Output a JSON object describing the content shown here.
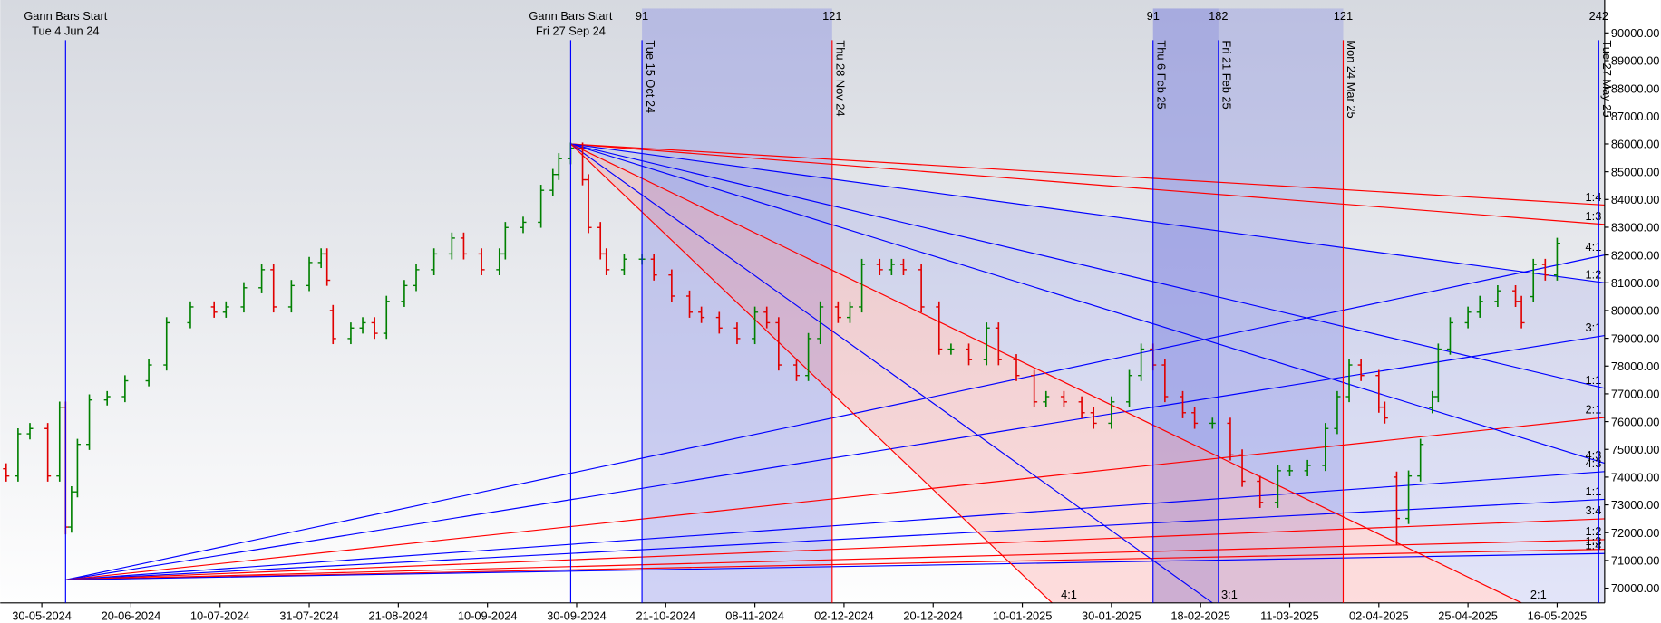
{
  "chart_data": {
    "type": "ohlc",
    "xlim": [
      -7,
      263
    ],
    "ylim": [
      69470,
      90880
    ],
    "up_color": "#008000",
    "down_color": "#e00000",
    "xticks": [
      {
        "value": 0,
        "label": "30-05-2024"
      },
      {
        "value": 15,
        "label": "20-06-2024"
      },
      {
        "value": 30,
        "label": "10-07-2024"
      },
      {
        "value": 45,
        "label": "31-07-2024"
      },
      {
        "value": 60,
        "label": "21-08-2024"
      },
      {
        "value": 75,
        "label": "10-09-2024"
      },
      {
        "value": 90,
        "label": "30-09-2024"
      },
      {
        "value": 105,
        "label": "21-10-2024"
      },
      {
        "value": 120,
        "label": "08-11-2024"
      },
      {
        "value": 135,
        "label": "02-12-2024"
      },
      {
        "value": 150,
        "label": "20-12-2024"
      },
      {
        "value": 165,
        "label": "10-01-2025"
      },
      {
        "value": 180,
        "label": "30-01-2025"
      },
      {
        "value": 195,
        "label": "18-02-2025"
      },
      {
        "value": 210,
        "label": "11-03-2025"
      },
      {
        "value": 225,
        "label": "02-04-2025"
      },
      {
        "value": 240,
        "label": "25-04-2025"
      },
      {
        "value": 255,
        "label": "16-05-2025"
      }
    ],
    "yticks": [
      {
        "value": 70000,
        "label": "70000.00"
      },
      {
        "value": 71000,
        "label": "71000.00"
      },
      {
        "value": 72000,
        "label": "72000.00"
      },
      {
        "value": 73000,
        "label": "73000.00"
      },
      {
        "value": 74000,
        "label": "74000.00"
      },
      {
        "value": 75000,
        "label": "75000.00"
      },
      {
        "value": 76000,
        "label": "76000.00"
      },
      {
        "value": 77000,
        "label": "77000.00"
      },
      {
        "value": 78000,
        "label": "78000.00"
      },
      {
        "value": 79000,
        "label": "79000.00"
      },
      {
        "value": 80000,
        "label": "80000.00"
      },
      {
        "value": 81000,
        "label": "81000.00"
      },
      {
        "value": 82000,
        "label": "82000.00"
      },
      {
        "value": 83000,
        "label": "83000.00"
      },
      {
        "value": 84000,
        "label": "84000.00"
      },
      {
        "value": 85000,
        "label": "85000.00"
      },
      {
        "value": 86000,
        "label": "86000.00"
      },
      {
        "value": 87000,
        "label": "87000.00"
      },
      {
        "value": 88000,
        "label": "88000.00"
      },
      {
        "value": 89000,
        "label": "89000.00"
      },
      {
        "value": 90000,
        "label": "90000.00"
      }
    ],
    "series": {
      "x": [
        -6,
        -4,
        -2,
        1,
        3,
        4,
        5,
        6,
        8,
        11,
        14,
        18,
        21,
        25,
        29,
        31,
        34,
        37,
        39,
        42,
        45,
        47,
        48,
        49,
        52,
        54,
        56,
        58,
        61,
        63,
        66,
        69,
        71,
        74,
        77,
        78,
        81,
        84,
        86,
        87,
        89,
        91,
        92,
        94,
        95,
        98,
        101,
        103,
        106,
        109,
        111,
        114,
        117,
        120,
        122,
        124,
        127,
        129,
        131,
        134,
        136,
        138,
        141,
        143,
        145,
        148,
        151,
        153,
        156,
        159,
        161,
        164,
        167,
        169,
        172,
        175,
        177,
        180,
        183,
        185,
        187,
        189,
        192,
        194,
        197,
        200,
        202,
        205,
        208,
        210,
        213,
        216,
        218,
        220,
        222,
        225,
        226,
        228,
        230,
        232,
        234,
        235,
        237,
        240,
        242,
        245,
        248,
        249,
        251,
        253,
        255
      ],
      "open": [
        74300,
        74040,
        75560,
        75750,
        74040,
        76520,
        72200,
        73470,
        75180,
        76780,
        76900,
        77470,
        78040,
        79560,
        80130,
        79940,
        80130,
        80820,
        81470,
        80130,
        80900,
        81730,
        82040,
        80000,
        78990,
        79370,
        79560,
        79180,
        80330,
        80900,
        81470,
        82040,
        82610,
        82040,
        81470,
        82040,
        82990,
        83180,
        84330,
        84900,
        85470,
        85850,
        84710,
        82990,
        82040,
        81470,
        81850,
        81850,
        81280,
        80520,
        79940,
        79750,
        79370,
        78990,
        79940,
        79560,
        78040,
        77660,
        78990,
        80130,
        79750,
        80130,
        81660,
        81470,
        81660,
        81470,
        80130,
        78610,
        78610,
        78230,
        79370,
        78230,
        77660,
        76710,
        76900,
        76710,
        76320,
        75940,
        76710,
        77660,
        78610,
        78040,
        76900,
        76320,
        75940,
        75940,
        74800,
        73850,
        73090,
        74230,
        74230,
        74420,
        75750,
        76900,
        78040,
        77660,
        76520,
        74000,
        72510,
        74040,
        76500,
        76900,
        78610,
        79560,
        79940,
        80330,
        80710,
        80330,
        80500,
        81660,
        81280
      ],
      "high": [
        74500,
        75760,
        75950,
        75950,
        76720,
        76720,
        73670,
        75380,
        76980,
        77100,
        77670,
        78240,
        79760,
        80330,
        80330,
        80330,
        81020,
        81670,
        81670,
        81100,
        81930,
        82240,
        82240,
        80200,
        79570,
        79760,
        79760,
        80530,
        81100,
        81670,
        82240,
        82810,
        82810,
        82240,
        82240,
        83190,
        83380,
        84530,
        85100,
        85670,
        86050,
        86050,
        84910,
        83190,
        82240,
        82050,
        82050,
        82050,
        81480,
        80720,
        80140,
        79950,
        79570,
        80140,
        80140,
        79760,
        78240,
        79190,
        80330,
        80330,
        80330,
        81860,
        81860,
        81860,
        81860,
        81670,
        80330,
        78810,
        78810,
        79570,
        79570,
        78430,
        77860,
        77100,
        77100,
        76910,
        76520,
        76910,
        77860,
        78810,
        78810,
        78240,
        77100,
        76520,
        76140,
        76140,
        75000,
        74050,
        74430,
        74430,
        74620,
        75950,
        77100,
        78240,
        78240,
        77860,
        76720,
        74200,
        74240,
        75380,
        77100,
        78810,
        79760,
        80140,
        80530,
        80910,
        80910,
        80530,
        81860,
        81860,
        82620
      ],
      "low": [
        73840,
        73840,
        75360,
        73840,
        73840,
        71940,
        72000,
        73270,
        74980,
        76580,
        76700,
        77270,
        77840,
        79360,
        79740,
        79740,
        79930,
        80620,
        79930,
        79930,
        80700,
        81530,
        80890,
        78790,
        78790,
        79170,
        78980,
        78980,
        80130,
        80700,
        81270,
        81840,
        81840,
        81270,
        81270,
        81840,
        82790,
        82980,
        84130,
        84700,
        85270,
        84510,
        82790,
        81840,
        81270,
        81270,
        81650,
        81080,
        80320,
        79740,
        79550,
        79170,
        78790,
        78790,
        79360,
        77840,
        77460,
        77460,
        78790,
        79550,
        79550,
        79930,
        81270,
        81270,
        81270,
        79930,
        78410,
        78410,
        78030,
        78030,
        78030,
        77460,
        76510,
        76510,
        76510,
        76120,
        75740,
        75740,
        76510,
        77460,
        77840,
        76700,
        76120,
        75740,
        75740,
        74600,
        73650,
        72890,
        72890,
        74030,
        74030,
        74220,
        75550,
        76700,
        77460,
        76320,
        75930,
        71560,
        72310,
        73840,
        76300,
        76700,
        78410,
        79360,
        79740,
        80130,
        80130,
        79360,
        80300,
        81080,
        81080
      ],
      "close": [
        74040,
        75560,
        75750,
        74040,
        76520,
        72200,
        73470,
        75180,
        76780,
        76900,
        77470,
        78040,
        79560,
        80130,
        79940,
        80130,
        80820,
        81470,
        80130,
        80900,
        81730,
        82040,
        81090,
        78990,
        79370,
        79560,
        79180,
        80330,
        80900,
        81470,
        82040,
        82610,
        82040,
        81470,
        82040,
        82990,
        83180,
        84330,
        84900,
        85470,
        85850,
        84710,
        82990,
        82040,
        81470,
        81850,
        81850,
        81280,
        80520,
        79940,
        79750,
        79370,
        78990,
        79940,
        79560,
        78040,
        77660,
        78990,
        80130,
        79750,
        80130,
        81660,
        81470,
        81660,
        81470,
        80130,
        78610,
        78610,
        78230,
        79370,
        78230,
        77660,
        76710,
        76900,
        76710,
        76320,
        75940,
        76710,
        77660,
        78610,
        78040,
        76900,
        76320,
        75940,
        75940,
        74800,
        73850,
        73090,
        74230,
        74230,
        74420,
        75750,
        76900,
        78040,
        77660,
        76520,
        76130,
        72510,
        74040,
        75180,
        76900,
        78610,
        79560,
        79940,
        80330,
        80710,
        80330,
        79560,
        81660,
        81280,
        82420
      ]
    },
    "vertical_lines": [
      {
        "x": 4,
        "color": "#0000ff",
        "title": "Gann Bars Start",
        "label": "Tue 4 Jun 24"
      },
      {
        "x": 89,
        "color": "#0000ff",
        "title": "Gann Bars Start",
        "label": "Fri 27 Sep 24"
      },
      {
        "x": 101,
        "color": "#0000ff",
        "label": "Tue 15 Oct 24",
        "count": 91
      },
      {
        "x": 133,
        "color": "#ff0000",
        "label": "Thu 28 Nov 24",
        "count": 121
      },
      {
        "x": 187,
        "color": "#0000ff",
        "label": "Thu 6 Feb 25",
        "count": 91
      },
      {
        "x": 198,
        "color": "#0000ff",
        "label": "Fri 21 Feb 25",
        "count": 182
      },
      {
        "x": 219,
        "color": "#ff0000",
        "label": "Mon 24 Mar 25",
        "count": 121
      },
      {
        "x": 262,
        "color": "#0000ff",
        "label": "Tue 27 May 25",
        "count": 242
      }
    ],
    "fans": [
      {
        "origin_x": 4,
        "origin_y": 70300,
        "lines": [
          {
            "label": "4:1",
            "color": "#0000ff",
            "x_end": 263,
            "y_end": 82000
          },
          {
            "label": "3:1",
            "color": "#0000ff",
            "x_end": 263,
            "y_end": 79100
          },
          {
            "label": "2:1",
            "color": "#ff0000",
            "x_end": 263,
            "y_end": 76150
          },
          {
            "label": "4:3",
            "color": "#0000ff",
            "x_end": 263,
            "y_end": 74200
          },
          {
            "label": "1:1",
            "color": "#0000ff",
            "x_end": 263,
            "y_end": 73200
          },
          {
            "label": "3:4",
            "color": "#ff0000",
            "x_end": 263,
            "y_end": 72500
          },
          {
            "label": "1:2",
            "color": "#ff0000",
            "x_end": 263,
            "y_end": 71750
          },
          {
            "label": "1:3",
            "color": "#ff0000",
            "x_end": 263,
            "y_end": 71400
          },
          {
            "label": "1:4",
            "color": "#0000ff",
            "x_end": 263,
            "y_end": 71250
          }
        ]
      },
      {
        "origin_x": 89,
        "origin_y": 86000,
        "lines": [
          {
            "label": "1:4",
            "color": "#ff0000",
            "x_end": 263,
            "y_end": 83800
          },
          {
            "label": "1:3",
            "color": "#ff0000",
            "x_end": 263,
            "y_end": 83100
          },
          {
            "label": "1:2",
            "color": "#0000ff",
            "x_end": 263,
            "y_end": 81000
          },
          {
            "label": "1:1",
            "color": "#0000ff",
            "x_end": 263,
            "y_end": 77200
          },
          {
            "label": "4:3",
            "color": "#0000ff",
            "x_end": 263,
            "y_end": 74500
          },
          {
            "label": "2:1",
            "color": "#ff0000",
            "x_end": 249,
            "y_end": 69470
          },
          {
            "label": "3:1",
            "color": "#0000ff",
            "x_end": 197,
            "y_end": 69470
          },
          {
            "label": "4:1",
            "color": "#ff0000",
            "x_end": 170,
            "y_end": 69470
          }
        ]
      }
    ]
  }
}
